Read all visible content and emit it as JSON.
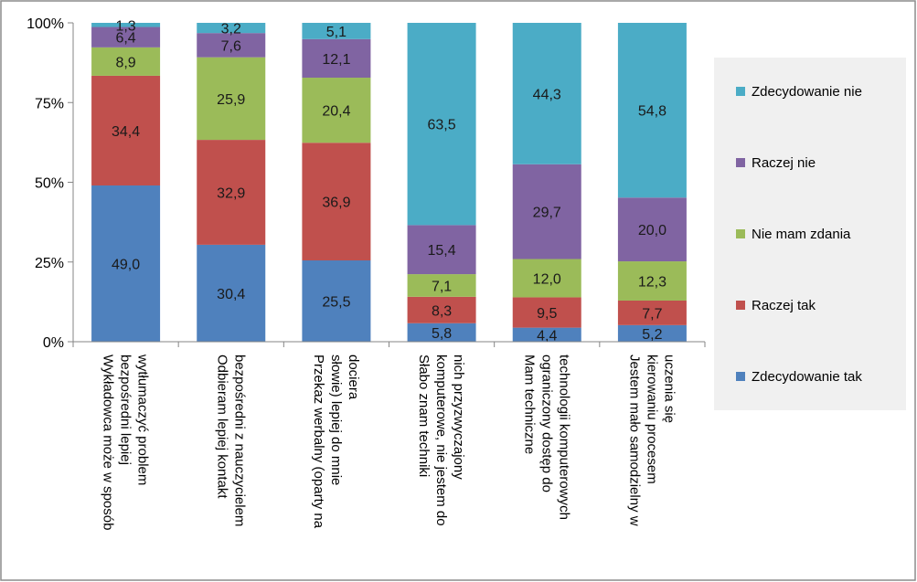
{
  "chart_data": {
    "type": "bar",
    "stacked": "percent",
    "title": "",
    "xlabel": "",
    "ylabel": "",
    "ylim": [
      0,
      100
    ],
    "ytick_labels": [
      "0%",
      "25%",
      "50%",
      "75%",
      "100%"
    ],
    "legend_position": "right",
    "categories": [
      "Wykładowca może w sposób bezpośredni lepiej wytłumaczyć problem",
      "Odbieram lepiej kontakt bezpośredni z nauczycielem",
      "Przekaz werbalny (oparty na słowie) lepiej do mnie dociera",
      "Słabo znam techniki komputerowe, nie jestem do nich przyzwyczajony",
      "Mam techniczne ograniczony dostęp do technologii komputerowych",
      "Jestem mało samodzielny w kierowaniu procesem uczenia się"
    ],
    "category_lines": [
      [
        "Wykładowca może w sposób",
        "bezpośredni lepiej",
        "wytłumaczyć problem"
      ],
      [
        "Odbieram lepiej kontakt",
        "bezpośredni z nauczycielem"
      ],
      [
        "Przekaz werbalny (oparty na",
        "słowie) lepiej do mnie",
        "dociera"
      ],
      [
        "Słabo znam techniki",
        "komputerowe, nie jestem do",
        "nich przyzwyczajony"
      ],
      [
        "Mam techniczne",
        "ograniczony dostęp do",
        "technologii komputerowych"
      ],
      [
        "Jestem mało samodzielny w",
        "kierowaniu procesem",
        "uczenia się"
      ]
    ],
    "series": [
      {
        "name": "Zdecydowanie tak",
        "color": "#4f81bd",
        "values": [
          49.0,
          30.4,
          25.5,
          5.8,
          4.4,
          5.2
        ],
        "labels": [
          "49,0",
          "30,4",
          "25,5",
          "5,8",
          "4,4",
          "5,2"
        ]
      },
      {
        "name": "Raczej tak",
        "color": "#c0504d",
        "values": [
          34.4,
          32.9,
          36.9,
          8.3,
          9.5,
          7.7
        ],
        "labels": [
          "34,4",
          "32,9",
          "36,9",
          "8,3",
          "9,5",
          "7,7"
        ]
      },
      {
        "name": "Nie mam zdania",
        "color": "#9bbb59",
        "values": [
          8.9,
          25.9,
          20.4,
          7.1,
          12.0,
          12.3
        ],
        "labels": [
          "8,9",
          "25,9",
          "20,4",
          "7,1",
          "12,0",
          "12,3"
        ]
      },
      {
        "name": "Raczej nie",
        "color": "#8064a2",
        "values": [
          6.4,
          7.6,
          12.1,
          15.4,
          29.7,
          20.0
        ],
        "labels": [
          "6,4",
          "7,6",
          "12,1",
          "15,4",
          "29,7",
          "20,0"
        ]
      },
      {
        "name": "Zdecydowanie nie",
        "color": "#4bacc6",
        "values": [
          1.3,
          3.2,
          5.1,
          63.5,
          44.3,
          54.8
        ],
        "labels": [
          "1,3",
          "3,2",
          "5,1",
          "63,5",
          "44,3",
          "54,8"
        ]
      }
    ]
  }
}
